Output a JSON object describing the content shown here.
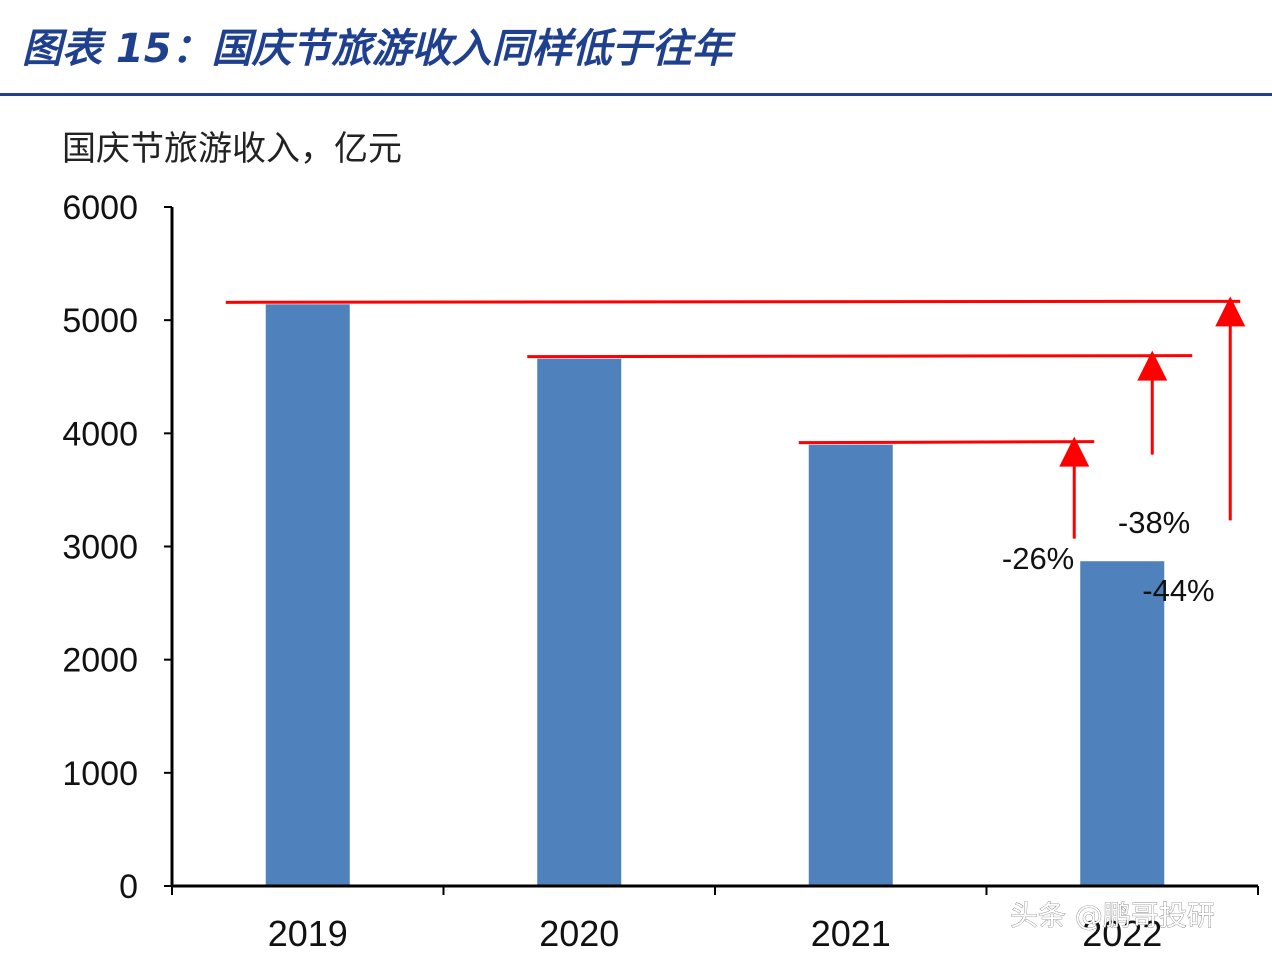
{
  "figure_title": "图表 15：国庆节旅游收入同样低于往年",
  "watermark": "头条 @鹏哥投研",
  "colors": {
    "bar": "#4f81bd",
    "title": "#1f3f8f",
    "rule": "#1f3f8f",
    "reference": "#ff0000"
  },
  "chart_data": {
    "type": "bar",
    "title": "",
    "ylabel": "国庆节旅游收入，亿元",
    "xlabel": "",
    "categories": [
      "2019",
      "2020",
      "2021",
      "2022"
    ],
    "values": [
      5140,
      4660,
      3900,
      2870
    ],
    "ylim": [
      0,
      6000
    ],
    "yticks": [
      0,
      1000,
      2000,
      3000,
      4000,
      5000,
      6000
    ],
    "grid": false,
    "legend": "none",
    "annotations": [
      {
        "label": "-26%",
        "reference_year": "2021"
      },
      {
        "label": "-38%",
        "reference_year": "2020"
      },
      {
        "label": "-44%",
        "reference_year": "2019"
      }
    ]
  }
}
